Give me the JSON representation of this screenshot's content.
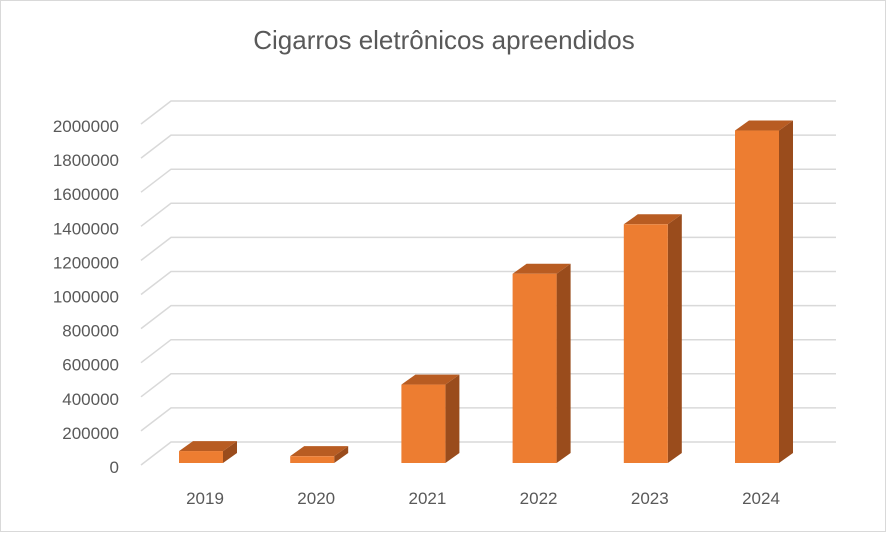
{
  "chart_data": {
    "type": "bar",
    "title": "Cigarros eletrônicos apreendidos",
    "categories": [
      "2019",
      "2020",
      "2021",
      "2022",
      "2023",
      "2024"
    ],
    "values": [
      70000,
      40000,
      460000,
      1110000,
      1400000,
      1950000
    ],
    "ylim": [
      0,
      2000000
    ],
    "yticks": [
      "0",
      "200000",
      "400000",
      "600000",
      "800000",
      "1000000",
      "1200000",
      "1400000",
      "1600000",
      "1800000",
      "2000000"
    ],
    "xlabel": "",
    "ylabel": "",
    "grid": true,
    "legend": "none",
    "style": "3d-column",
    "colors": {
      "front": "#ed7d31",
      "top": "#b85c22",
      "side": "#9a4c1c",
      "grid": "#d9d9d9",
      "text": "#595959"
    }
  }
}
